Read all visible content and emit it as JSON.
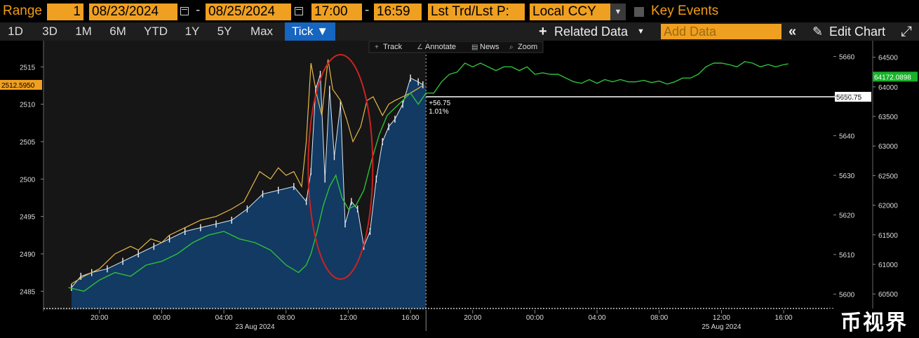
{
  "toolbar": {
    "range_label": "Range",
    "range_count": "1",
    "start_date": "08/23/2024",
    "end_date": "08/25/2024",
    "start_time": "17:00",
    "end_time": "16:59",
    "last_price_mode": "Lst Trd/Lst P:",
    "currency": "Local CCY",
    "key_events_label": "Key Events"
  },
  "periods": [
    "1D",
    "3D",
    "1M",
    "6M",
    "YTD",
    "1Y",
    "5Y",
    "Max"
  ],
  "active_period": "Tick ▼",
  "actions": {
    "related_data": "Related Data",
    "add_data_placeholder": "Add Data",
    "edit_chart": "Edit Chart"
  },
  "chart_tools": [
    "Track",
    "Annotate",
    "News",
    "Zoom"
  ],
  "watermark_text": "币视界",
  "colors": {
    "primary_line": "#ffffff",
    "primary_fill": "#123a62",
    "yellow_series": "#e8b84b",
    "green_series": "#2fbf3a",
    "circle": "#cc2222",
    "orange_field": "#f0a020",
    "active_tab": "#1665c0"
  },
  "chart_data": {
    "type": "line",
    "left_axis": {
      "ticks": [
        "2485",
        "2490",
        "2495",
        "2500",
        "2505",
        "2510",
        "2515"
      ],
      "range": [
        2482.5,
        2518.5
      ]
    },
    "mid_axis": {
      "ticks": [
        "5600",
        "5610",
        "5620",
        "5630",
        "5640",
        "5650",
        "5660"
      ],
      "range": [
        5596,
        5664
      ]
    },
    "right_axis": {
      "ticks": [
        "60500",
        "61000",
        "61500",
        "62000",
        "62500",
        "63000",
        "63500",
        "64000",
        "64500"
      ],
      "range": [
        60230,
        64780
      ]
    },
    "x_ticks": [
      {
        "h": 20,
        "label": "20:00"
      },
      {
        "h": 24,
        "label": "00:00"
      },
      {
        "h": 28,
        "label": "04:00"
      },
      {
        "h": 32,
        "label": "08:00"
      },
      {
        "h": 36,
        "label": "12:00"
      },
      {
        "h": 40,
        "label": "16:00"
      },
      {
        "h": 44,
        "label": "20:00"
      },
      {
        "h": 48,
        "label": "00:00"
      },
      {
        "h": 52,
        "label": "04:00"
      },
      {
        "h": 56,
        "label": "08:00"
      },
      {
        "h": 60,
        "label": "12:00"
      },
      {
        "h": 64,
        "label": "16:00"
      }
    ],
    "date_labels": [
      {
        "h": 30,
        "label": "23 Aug 2024"
      },
      {
        "h": 60,
        "label": "25 Aug 2024"
      }
    ],
    "series": [
      {
        "axis": "left",
        "style": "area-bars",
        "x": [
          18.2,
          18.8,
          19.5,
          20.5,
          21.5,
          22.5,
          23.5,
          24.5,
          25.5,
          26.5,
          27.5,
          28.5,
          29.5,
          30.5,
          31.5,
          32.5,
          33.3,
          33.6,
          33.9,
          34.2,
          34.5,
          34.8,
          35.1,
          35.5,
          35.8,
          36.2,
          36.6,
          37.0,
          37.4,
          37.8,
          38.2,
          38.6,
          39.0,
          39.5,
          40.0,
          40.5,
          40.8
        ],
        "values": [
          2485.5,
          2487.0,
          2487.5,
          2488.0,
          2489.0,
          2490.0,
          2491.0,
          2492.0,
          2493.0,
          2493.5,
          2494.0,
          2494.5,
          2496.0,
          2498.0,
          2498.5,
          2499.0,
          2497.0,
          2501.0,
          2512.0,
          2514.0,
          2500.0,
          2512.0,
          2503.0,
          2510.0,
          2494.0,
          2497.0,
          2496.0,
          2491.0,
          2493.0,
          2500.0,
          2505.0,
          2507.0,
          2508.0,
          2510.0,
          2513.5,
          2513.0,
          2512.6
        ]
      },
      {
        "axis": "left",
        "style": "line",
        "color": "yellow",
        "x": [
          18.2,
          19.0,
          20.0,
          21.0,
          22.0,
          22.5,
          23.3,
          24.0,
          24.5,
          25.5,
          26.5,
          27.5,
          28.5,
          29.3,
          29.8,
          30.3,
          31.0,
          31.5,
          32.0,
          32.5,
          33.0,
          33.3,
          33.6,
          34.0,
          34.3,
          34.7,
          35.0,
          35.5,
          35.9,
          36.3,
          36.8,
          37.2,
          37.6,
          38.2,
          38.6,
          39.0,
          39.5,
          40.0,
          40.8
        ],
        "values": [
          2486.0,
          2487.0,
          2488.0,
          2490.0,
          2491.0,
          2490.5,
          2492.0,
          2491.5,
          2492.5,
          2493.5,
          2494.5,
          2495.0,
          2496.0,
          2497.0,
          2499.0,
          2501.0,
          2500.0,
          2501.5,
          2500.5,
          2501.0,
          2499.0,
          2505.0,
          2515.5,
          2511.0,
          2508.5,
          2516.0,
          2512.0,
          2510.5,
          2508.0,
          2505.0,
          2507.0,
          2510.5,
          2511.0,
          2508.5,
          2510.0,
          2510.5,
          2511.0,
          2511.5,
          2512.5
        ]
      },
      {
        "axis": "left",
        "style": "line",
        "color": "green",
        "x": [
          18.0,
          19.0,
          20.0,
          21.0,
          22.0,
          23.0,
          24.0,
          25.0,
          26.0,
          27.0,
          28.0,
          29.0,
          30.0,
          31.0,
          32.0,
          32.8,
          33.3,
          33.6,
          34.0,
          34.4,
          34.8,
          35.2,
          35.6,
          36.0,
          36.5,
          37.0,
          37.5,
          38.0,
          38.5,
          39.0,
          39.5,
          40.0,
          40.5,
          41.0,
          41.5,
          42.0,
          42.5,
          43.0,
          43.5,
          44.0,
          44.5,
          45.0,
          45.5,
          46.0,
          46.5,
          47.0,
          47.5,
          48.0,
          48.5,
          49.0,
          49.5,
          50.0,
          50.5,
          51.0,
          51.5,
          52.0,
          52.5,
          53.0,
          53.5,
          54.0,
          54.5,
          55.0,
          55.5,
          56.0,
          56.5,
          57.0,
          57.5,
          58.0,
          58.5,
          59.0,
          59.5,
          60.0,
          60.5,
          61.0,
          61.5,
          62.0,
          62.5,
          63.0,
          63.5,
          64.0,
          64.3
        ],
        "values": [
          2485.5,
          2485.0,
          2486.5,
          2487.5,
          2487.0,
          2488.5,
          2489.0,
          2490.0,
          2491.5,
          2492.5,
          2493.0,
          2492.0,
          2491.5,
          2490.5,
          2488.5,
          2487.5,
          2488.5,
          2490.0,
          2493.0,
          2496.5,
          2499.0,
          2500.5,
          2497.5,
          2496.0,
          2496.5,
          2498.5,
          2502.5,
          2506.0,
          2508.5,
          2509.5,
          2510.5,
          2511.5,
          2510.0,
          2511.5,
          2511.5,
          2513.0,
          2514.0,
          2514.3,
          2515.5,
          2515.0,
          2515.5,
          2515.0,
          2514.5,
          2515.0,
          2515.0,
          2514.5,
          2515.0,
          2514.0,
          2514.2,
          2514.0,
          2514.0,
          2513.5,
          2513.0,
          2512.8,
          2513.3,
          2512.8,
          2513.3,
          2513.0,
          2513.3,
          2513.0,
          2513.0,
          2513.2,
          2512.9,
          2513.1,
          2512.7,
          2513.0,
          2513.5,
          2513.5,
          2514.0,
          2515.0,
          2515.5,
          2515.5,
          2515.3,
          2515.0,
          2515.7,
          2515.5,
          2515.0,
          2515.3,
          2515.0,
          2515.3,
          2515.4
        ]
      }
    ],
    "reference": {
      "axis": "left",
      "value": 2511.0,
      "label": "5650.75"
    },
    "current_left_label": "2512.5950",
    "current_right_label": "64172.0898",
    "annotation_change": "+56.75",
    "annotation_pct": "1.01%",
    "session_end_h": 41.0,
    "highlight_circle_center_h": 35.5,
    "dotted_baseline": 2482.7
  }
}
